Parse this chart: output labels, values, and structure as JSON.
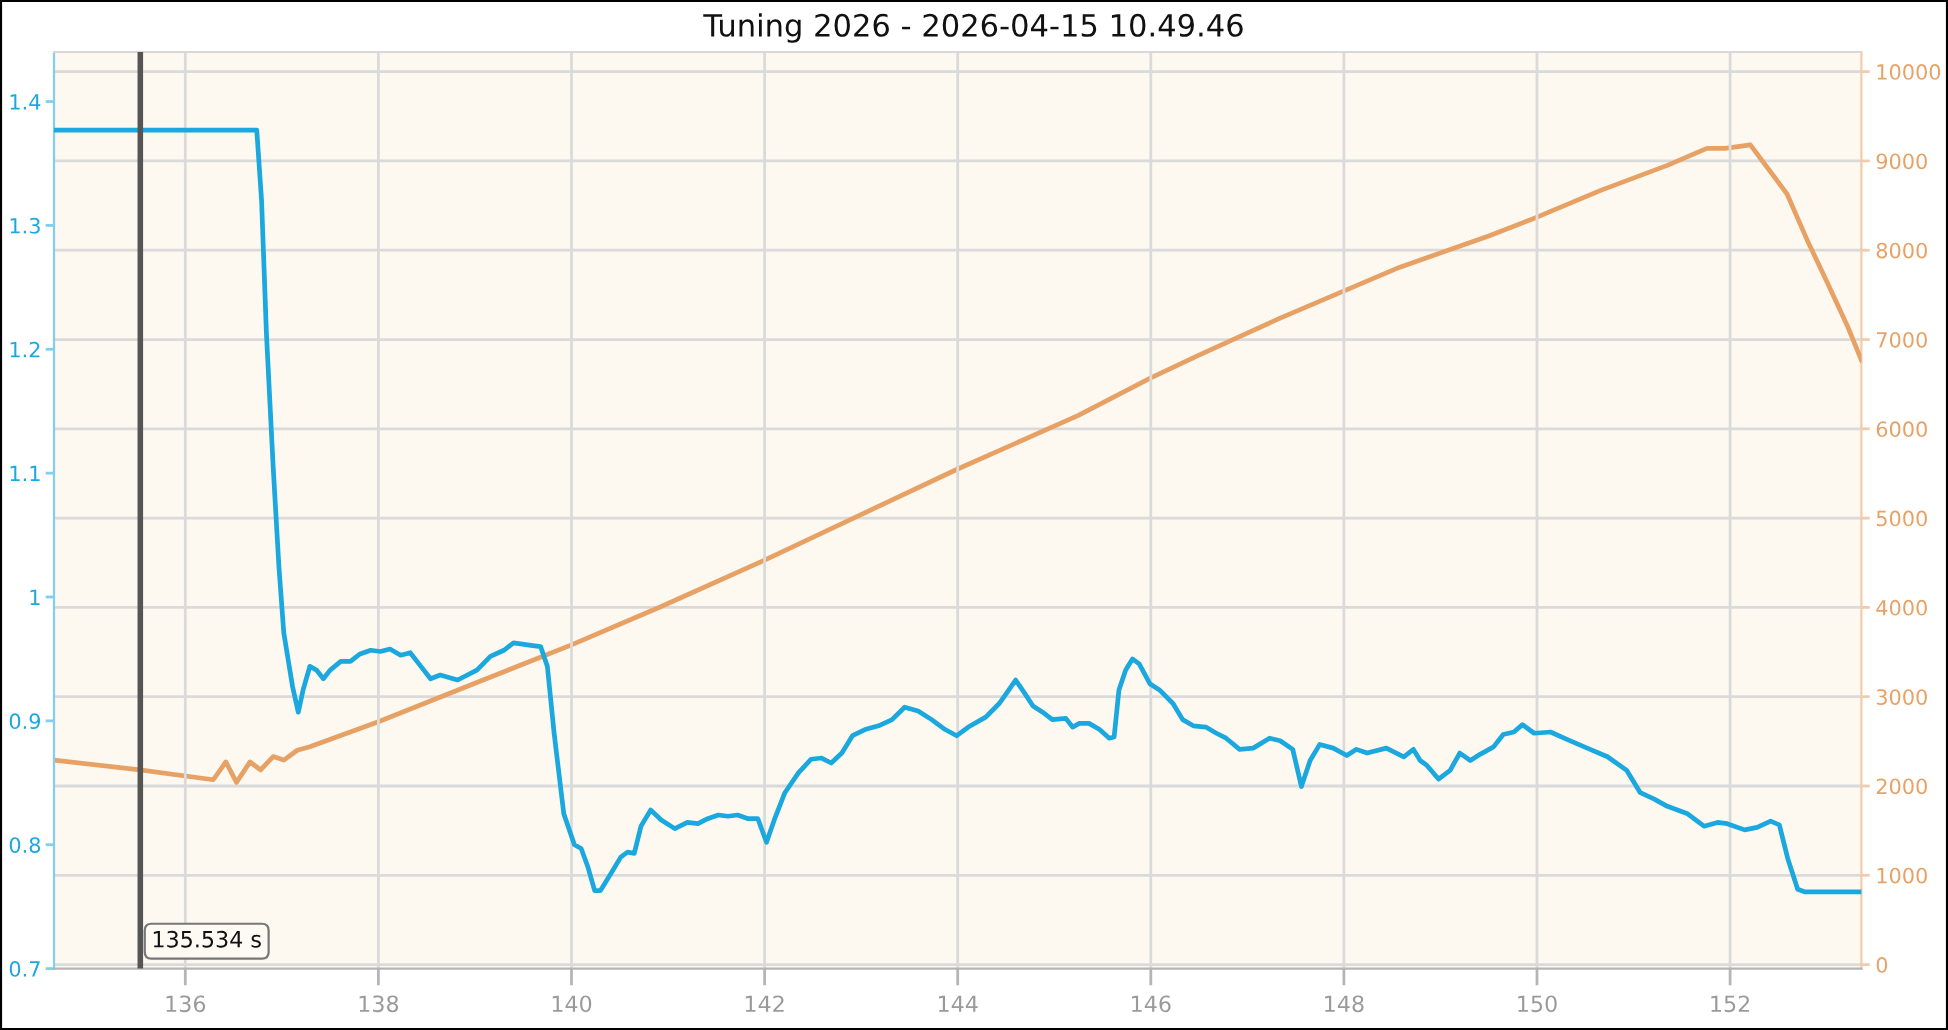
{
  "chart_data": {
    "type": "line",
    "title": "Tuning 2026 - 2026-04-15 10.49.46",
    "series": [
      {
        "color": "#1aa8df",
        "x": [
          134.64,
          136.74,
          136.79,
          136.84,
          136.91,
          136.97,
          137.02,
          137.11,
          137.17,
          137.22,
          137.29,
          137.36,
          137.43,
          137.5,
          137.61,
          137.71,
          137.81,
          137.92,
          138.02,
          138.12,
          138.23,
          138.33,
          138.44,
          138.54,
          138.64,
          138.82,
          139.02,
          139.16,
          139.3,
          139.4,
          139.58,
          139.68,
          139.75,
          139.82,
          139.92,
          140.03,
          140.1,
          140.17,
          140.24,
          140.3,
          140.41,
          140.51,
          140.58,
          140.65,
          140.72,
          140.82,
          140.93,
          141.07,
          141.2,
          141.31,
          141.41,
          141.52,
          141.62,
          141.72,
          141.83,
          141.93,
          142.02,
          142.1,
          142.21,
          142.35,
          142.48,
          142.59,
          142.69,
          142.8,
          142.91,
          143.04,
          143.18,
          143.32,
          143.45,
          143.59,
          143.73,
          143.87,
          143.99,
          144.11,
          144.29,
          144.43,
          144.53,
          144.6,
          144.67,
          144.78,
          144.88,
          144.98,
          145.12,
          145.19,
          145.26,
          145.36,
          145.47,
          145.57,
          145.62,
          145.67,
          145.74,
          145.81,
          145.88,
          145.99,
          146.09,
          146.23,
          146.33,
          146.44,
          146.57,
          146.68,
          146.78,
          146.92,
          147.06,
          147.23,
          147.34,
          147.47,
          147.56,
          147.65,
          147.75,
          147.89,
          148.03,
          148.13,
          148.24,
          148.44,
          148.62,
          148.72,
          148.79,
          148.86,
          148.98,
          149.1,
          149.2,
          149.31,
          149.41,
          149.55,
          149.65,
          149.76,
          149.85,
          149.97,
          150.14,
          150.31,
          150.52,
          150.73,
          150.93,
          151.07,
          151.21,
          151.35,
          151.56,
          151.73,
          151.87,
          151.97,
          152.15,
          152.28,
          152.42,
          152.51,
          152.6,
          152.7,
          152.77,
          153.36
        ],
        "values": [
          1.377,
          1.377,
          1.32,
          1.213,
          1.105,
          1.024,
          0.971,
          0.928,
          0.907,
          0.925,
          0.944,
          0.941,
          0.934,
          0.941,
          0.948,
          0.948,
          0.954,
          0.957,
          0.956,
          0.958,
          0.953,
          0.955,
          0.944,
          0.934,
          0.937,
          0.933,
          0.941,
          0.952,
          0.957,
          0.963,
          0.961,
          0.96,
          0.944,
          0.89,
          0.825,
          0.8,
          0.797,
          0.782,
          0.763,
          0.763,
          0.777,
          0.79,
          0.794,
          0.793,
          0.815,
          0.828,
          0.82,
          0.813,
          0.818,
          0.817,
          0.821,
          0.824,
          0.823,
          0.824,
          0.821,
          0.821,
          0.802,
          0.82,
          0.842,
          0.858,
          0.869,
          0.87,
          0.866,
          0.874,
          0.888,
          0.893,
          0.896,
          0.901,
          0.911,
          0.908,
          0.901,
          0.893,
          0.888,
          0.895,
          0.903,
          0.914,
          0.925,
          0.933,
          0.925,
          0.912,
          0.907,
          0.901,
          0.902,
          0.895,
          0.898,
          0.898,
          0.893,
          0.886,
          0.887,
          0.925,
          0.941,
          0.95,
          0.946,
          0.93,
          0.925,
          0.914,
          0.901,
          0.896,
          0.895,
          0.89,
          0.886,
          0.877,
          0.878,
          0.886,
          0.884,
          0.877,
          0.847,
          0.868,
          0.881,
          0.878,
          0.872,
          0.877,
          0.874,
          0.878,
          0.871,
          0.877,
          0.868,
          0.864,
          0.853,
          0.86,
          0.874,
          0.868,
          0.873,
          0.879,
          0.889,
          0.891,
          0.897,
          0.89,
          0.891,
          0.885,
          0.878,
          0.871,
          0.86,
          0.842,
          0.837,
          0.831,
          0.825,
          0.815,
          0.818,
          0.817,
          0.812,
          0.814,
          0.819,
          0.816,
          0.788,
          0.764,
          0.762,
          0.762
        ]
      },
      {
        "color": "#e8a165",
        "axis": "y2",
        "x": [
          134.64,
          135.53,
          136.29,
          136.42,
          136.53,
          136.67,
          136.78,
          136.91,
          137.02,
          137.16,
          137.29,
          138.0,
          139.0,
          140.0,
          140.93,
          142.0,
          144.0,
          145.25,
          146.0,
          146.51,
          147.34,
          147.99,
          148.58,
          149.5,
          150.0,
          150.66,
          151.35,
          151.76,
          151.95,
          152.21,
          152.59,
          152.8,
          153.01,
          153.22,
          153.36
        ],
        "values": [
          2290,
          2180,
          2070,
          2270,
          2040,
          2270,
          2180,
          2330,
          2290,
          2400,
          2440,
          2720,
          3150,
          3580,
          4010,
          4530,
          5550,
          6150,
          6570,
          6830,
          7240,
          7540,
          7810,
          8160,
          8370,
          8670,
          8950,
          9140,
          9140,
          9180,
          8630,
          8110,
          7630,
          7140,
          6770
        ]
      }
    ],
    "xlim": [
      134.64,
      153.36
    ],
    "xticks": [
      136,
      138,
      140,
      142,
      144,
      146,
      148,
      150,
      152
    ],
    "ylim": [
      0.7,
      1.44
    ],
    "yticks": [
      0.7,
      0.8,
      0.9,
      1,
      1.1,
      1.2,
      1.3,
      1.4
    ],
    "y2lim": [
      -45,
      10220
    ],
    "y2ticks": [
      0,
      1000,
      2000,
      3000,
      4000,
      5000,
      6000,
      7000,
      8000,
      9000,
      10000
    ],
    "grid": true,
    "ref_lines": [
      {
        "axis": "x",
        "value": 135.534,
        "label": "135.534 s",
        "color": "#555555"
      }
    ]
  }
}
